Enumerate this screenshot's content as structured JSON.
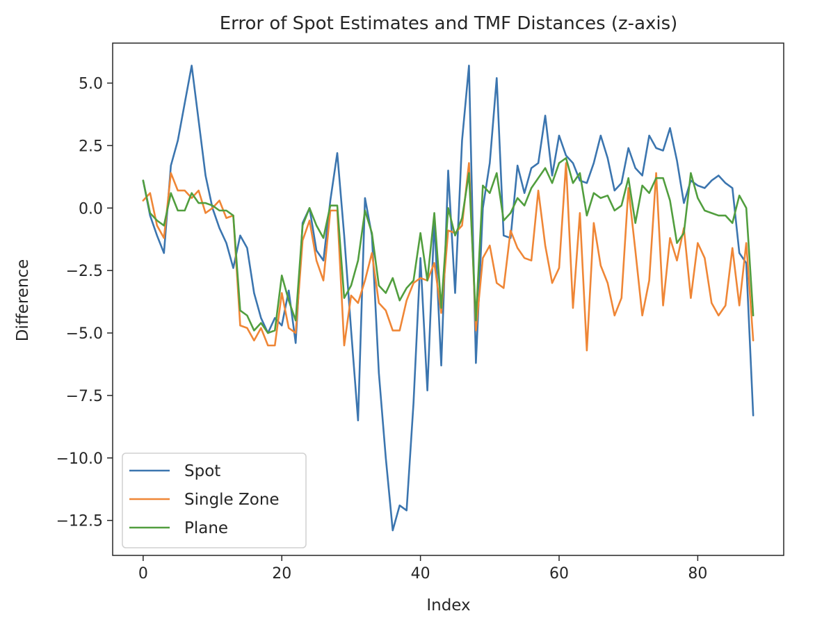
{
  "chart_data": {
    "type": "line",
    "title": "Error of Spot Estimates and TMF Distances (z-axis)",
    "xlabel": "Index",
    "ylabel": "Difference",
    "xlim": [
      -4.4,
      92.4
    ],
    "ylim": [
      -13.9,
      6.6
    ],
    "xticks": [
      0,
      20,
      40,
      60,
      80
    ],
    "yticks": [
      5.0,
      2.5,
      0.0,
      -2.5,
      -5.0,
      -7.5,
      -10.0,
      -12.5
    ],
    "ytick_labels": [
      "5.0",
      "2.5",
      "0.0",
      "−2.5",
      "−5.0",
      "−7.5",
      "−10.0",
      "−12.5"
    ],
    "grid": false,
    "legend_position": "lower-left",
    "series": [
      {
        "name": "Spot",
        "color": "#3b75af",
        "values": [
          1.1,
          -0.3,
          -1.1,
          -1.8,
          1.7,
          2.7,
          4.2,
          5.7,
          3.5,
          1.3,
          0.0,
          -0.8,
          -1.4,
          -2.4,
          -1.1,
          -1.6,
          -3.4,
          -4.4,
          -5.0,
          -4.4,
          -4.7,
          -3.3,
          -5.4,
          -0.6,
          0.0,
          -1.7,
          -2.1,
          0.3,
          2.2,
          -1.1,
          -4.9,
          -8.5,
          0.4,
          -1.1,
          -6.6,
          -10.0,
          -12.9,
          -11.9,
          -12.1,
          -7.8,
          -2.0,
          -7.3,
          -0.5,
          -6.3,
          1.5,
          -3.4,
          2.7,
          5.7,
          -6.2,
          0.0,
          1.8,
          5.2,
          -1.1,
          -1.2,
          1.7,
          0.6,
          1.6,
          1.8,
          3.7,
          1.3,
          2.9,
          2.1,
          1.8,
          1.1,
          1.0,
          1.8,
          2.9,
          2.0,
          0.7,
          1.0,
          2.4,
          1.6,
          1.3,
          2.9,
          2.4,
          2.3,
          3.2,
          1.9,
          0.2,
          1.1,
          0.9,
          0.8,
          1.1,
          1.3,
          1.0,
          0.8,
          -1.8,
          -2.2,
          -8.3
        ]
      },
      {
        "name": "Single Zone",
        "color": "#ef8636",
        "values": [
          0.3,
          0.6,
          -0.7,
          -1.2,
          1.4,
          0.7,
          0.7,
          0.4,
          0.7,
          -0.2,
          0.0,
          0.3,
          -0.4,
          -0.3,
          -4.7,
          -4.8,
          -5.3,
          -4.8,
          -5.5,
          -5.5,
          -3.4,
          -4.8,
          -5.0,
          -1.3,
          -0.5,
          -2.1,
          -2.9,
          -0.1,
          -0.1,
          -5.5,
          -3.5,
          -3.8,
          -2.9,
          -1.8,
          -3.8,
          -4.1,
          -4.9,
          -4.9,
          -3.7,
          -3.0,
          -2.8,
          -2.9,
          -2.2,
          -4.2,
          -0.9,
          -1.0,
          -0.7,
          1.8,
          -4.9,
          -2.0,
          -1.5,
          -3.0,
          -3.2,
          -0.9,
          -1.6,
          -2.0,
          -2.1,
          0.7,
          -1.5,
          -3.0,
          -2.4,
          1.8,
          -4.0,
          -0.2,
          -5.7,
          -0.6,
          -2.3,
          -3.0,
          -4.3,
          -3.6,
          0.8,
          -1.7,
          -4.3,
          -2.9,
          1.4,
          -3.9,
          -1.2,
          -2.1,
          -0.8,
          -3.6,
          -1.4,
          -2.0,
          -3.8,
          -4.3,
          -3.9,
          -1.6,
          -3.9,
          -1.4,
          -5.3
        ]
      },
      {
        "name": "Plane",
        "color": "#519e3e",
        "values": [
          1.1,
          -0.2,
          -0.5,
          -0.7,
          0.6,
          -0.1,
          -0.1,
          0.6,
          0.2,
          0.2,
          0.1,
          -0.1,
          -0.1,
          -0.3,
          -4.1,
          -4.3,
          -4.9,
          -4.6,
          -5.0,
          -4.9,
          -2.7,
          -3.7,
          -4.5,
          -0.7,
          0.0,
          -0.7,
          -1.2,
          0.1,
          0.1,
          -3.6,
          -3.1,
          -2.1,
          -0.1,
          -1.0,
          -3.1,
          -3.4,
          -2.8,
          -3.7,
          -3.2,
          -2.9,
          -1.0,
          -2.9,
          -0.2,
          -4.0,
          0.0,
          -1.1,
          -0.4,
          1.4,
          -4.5,
          0.9,
          0.6,
          1.4,
          -0.5,
          -0.2,
          0.4,
          0.1,
          0.8,
          1.2,
          1.6,
          1.0,
          1.8,
          2.0,
          1.0,
          1.4,
          -0.3,
          0.6,
          0.4,
          0.5,
          -0.1,
          0.1,
          1.2,
          -0.6,
          0.9,
          0.6,
          1.2,
          1.2,
          0.3,
          -1.4,
          -1.0,
          1.4,
          0.4,
          -0.1,
          -0.2,
          -0.3,
          -0.3,
          -0.6,
          0.5,
          0.0,
          -4.3
        ]
      }
    ]
  }
}
